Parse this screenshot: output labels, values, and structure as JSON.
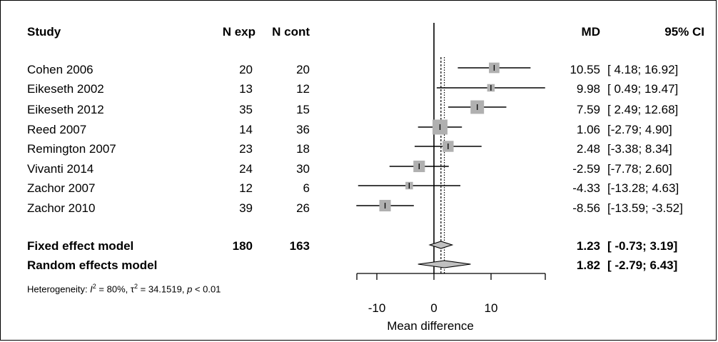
{
  "headers": {
    "study": "Study",
    "n_exp": "N exp",
    "n_cont": "N cont",
    "md": "MD",
    "ci": "95% CI"
  },
  "studies": [
    {
      "study": "Cohen 2006",
      "n_exp": "20",
      "n_cont": "20",
      "md_text": "10.55",
      "ci_text": "[ 4.18; 16.92]"
    },
    {
      "study": "Eikeseth 2002",
      "n_exp": "13",
      "n_cont": "12",
      "md_text": "9.98",
      "ci_text": "[ 0.49; 19.47]"
    },
    {
      "study": "Eikeseth 2012",
      "n_exp": "35",
      "n_cont": "15",
      "md_text": "7.59",
      "ci_text": "[ 2.49; 12.68]"
    },
    {
      "study": "Reed 2007",
      "n_exp": "14",
      "n_cont": "36",
      "md_text": "1.06",
      "ci_text": "[-2.79; 4.90]"
    },
    {
      "study": "Remington 2007",
      "n_exp": "23",
      "n_cont": "18",
      "md_text": "2.48",
      "ci_text": "[-3.38; 8.34]"
    },
    {
      "study": "Vivanti 2014",
      "n_exp": "24",
      "n_cont": "30",
      "md_text": "-2.59",
      "ci_text": "[-7.78; 2.60]"
    },
    {
      "study": "Zachor 2007",
      "n_exp": "12",
      "n_cont": "6",
      "md_text": "-4.33",
      "ci_text": "[-13.28; 4.63]"
    },
    {
      "study": "Zachor 2010",
      "n_exp": "39",
      "n_cont": "26",
      "md_text": "-8.56",
      "ci_text": "[-13.59; -3.52]"
    }
  ],
  "summary": [
    {
      "label": "Fixed effect model",
      "n_exp": "180",
      "n_cont": "163",
      "md_text": "1.23",
      "ci_text": "[ -0.73; 3.19]"
    },
    {
      "label": "Random effects model",
      "n_exp": "",
      "n_cont": "",
      "md_text": "1.82",
      "ci_text": "[ -2.79; 6.43]"
    }
  ],
  "heterogeneity": {
    "prefix": "Heterogeneity: ",
    "i2_symbol": "I",
    "i2_value": " = 80%, ",
    "tau_symbol": "τ",
    "tau_value": " = 34.1519, ",
    "p_symbol": "p",
    "p_value": " < 0.01"
  },
  "chart_data": {
    "type": "forest",
    "xlabel": "Mean difference",
    "xlim": [
      -13.5,
      19.5
    ],
    "xticks": [
      -10,
      0,
      10
    ],
    "tick_labels": [
      "-10",
      "0",
      "10"
    ],
    "null_line": 0,
    "colors": {
      "box": "#b0b0b0",
      "diamond": "#c0c0c0",
      "line": "#000000"
    },
    "studies": [
      {
        "name": "Cohen 2006",
        "md": 10.55,
        "lo": 4.18,
        "hi": 16.92,
        "weight": 0.55
      },
      {
        "name": "Eikeseth 2002",
        "md": 9.98,
        "lo": 0.49,
        "hi": 19.47,
        "weight": 0.25
      },
      {
        "name": "Eikeseth 2012",
        "md": 7.59,
        "lo": 2.49,
        "hi": 12.68,
        "weight": 0.85
      },
      {
        "name": "Reed 2007",
        "md": 1.06,
        "lo": -2.79,
        "hi": 4.9,
        "weight": 1.0
      },
      {
        "name": "Remington 2007",
        "md": 2.48,
        "lo": -3.38,
        "hi": 8.34,
        "weight": 0.6
      },
      {
        "name": "Vivanti 2014",
        "md": -2.59,
        "lo": -7.78,
        "hi": 2.6,
        "weight": 0.65
      },
      {
        "name": "Zachor 2007",
        "md": -4.33,
        "lo": -13.28,
        "hi": 4.63,
        "weight": 0.25
      },
      {
        "name": "Zachor 2010",
        "md": -8.56,
        "lo": -13.59,
        "hi": -3.52,
        "weight": 0.65
      }
    ],
    "fixed": {
      "md": 1.23,
      "lo": -0.73,
      "hi": 3.19
    },
    "random": {
      "md": 1.82,
      "lo": -2.79,
      "hi": 6.43
    }
  }
}
